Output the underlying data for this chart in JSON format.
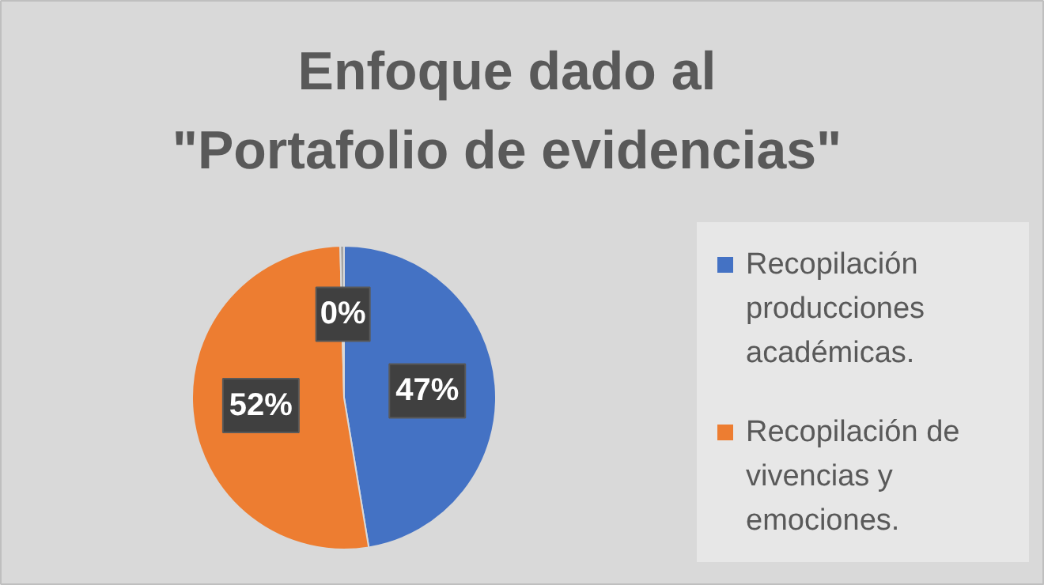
{
  "chart_data": {
    "type": "pie",
    "title": "Enfoque dado al\n\"Portafolio de evidencias\"",
    "categories": [
      "Recopilación producciones académicas.",
      "Recopilación de vivencias y emociones.",
      null
    ],
    "values": [
      47.4,
      52.2,
      0.4
    ],
    "value_labels": [
      "47%",
      "52%",
      "0%"
    ],
    "colors": [
      "#4472c4",
      "#ed7d31",
      "#a5a5a5"
    ],
    "legend": "right"
  }
}
